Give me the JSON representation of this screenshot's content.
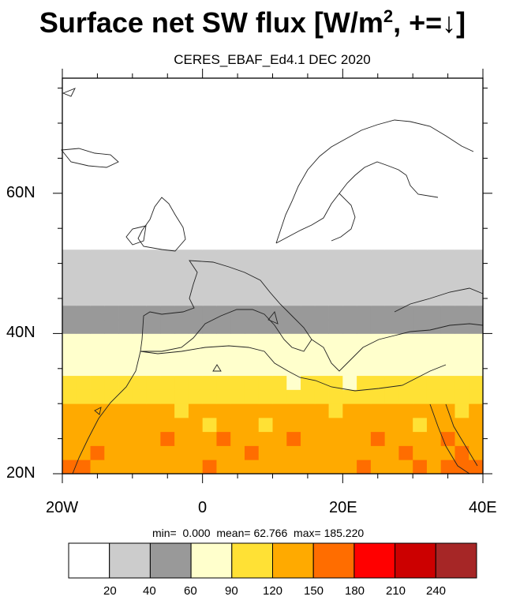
{
  "title": {
    "prefix": "Surface net SW flux [W/m",
    "sup": "2",
    "suffix": ", +=↓]"
  },
  "subtitle": "CERES_EBAF_Ed4.1 DEC 2020",
  "y_ticks": [
    "20N",
    "40N",
    "60N"
  ],
  "x_ticks": [
    "20W",
    "0",
    "20E",
    "40E"
  ],
  "stats": {
    "min_label": "min=",
    "min": "0.000",
    "mean_label": "mean=",
    "mean": "62.766",
    "max_label": "max=",
    "max": "185.220"
  },
  "colorbar": {
    "labels": [
      "20",
      "40",
      "60",
      "90",
      "120",
      "150",
      "180",
      "210",
      "240"
    ],
    "colors": [
      "#ffffff",
      "#cccccc",
      "#999999",
      "#ffffcc",
      "#ffe135",
      "#ffaa00",
      "#ff6d00",
      "#ff0000",
      "#cc0000",
      "#a62626"
    ]
  },
  "chart_data": {
    "type": "heatmap",
    "title": "Surface net SW flux [W/m2, +=↓]",
    "subtitle": "CERES_EBAF_Ed4.1 DEC 2020",
    "lon_range": [
      -20,
      40
    ],
    "lat_range": [
      20,
      75
    ],
    "units": "W/m2",
    "levels": [
      20,
      40,
      60,
      90,
      120,
      150,
      180,
      210,
      240
    ],
    "zonal_bands": [
      {
        "lat": [
          53,
          75
        ],
        "value": "0-20"
      },
      {
        "lat": [
          45,
          53
        ],
        "value": "20-40"
      },
      {
        "lat": [
          41,
          45
        ],
        "value": "40-60"
      },
      {
        "lat": [
          35,
          41
        ],
        "value": "60-90"
      },
      {
        "lat": [
          30,
          35
        ],
        "value": "90-120"
      },
      {
        "lat": [
          25,
          30
        ],
        "value": "120-150"
      },
      {
        "lat": [
          20,
          25
        ],
        "value": "120-180"
      }
    ],
    "min": 0.0,
    "mean": 62.766,
    "max": 185.22
  }
}
